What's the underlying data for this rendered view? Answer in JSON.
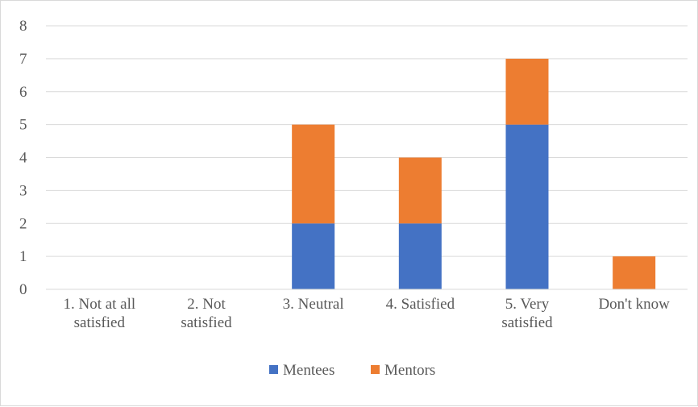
{
  "chart_data": {
    "type": "bar",
    "stacked": true,
    "title": "",
    "xlabel": "",
    "ylabel": "",
    "categories": [
      [
        "1. Not at all",
        "satisfied"
      ],
      [
        "2. Not",
        "satisfied"
      ],
      [
        "3. Neutral"
      ],
      [
        "4. Satisfied"
      ],
      [
        "5. Very",
        "satisfied"
      ],
      [
        "Don't know"
      ]
    ],
    "series": [
      {
        "name": "Mentees",
        "color": "#4472c4",
        "values": [
          0,
          0,
          2,
          2,
          5,
          0
        ]
      },
      {
        "name": "Mentors",
        "color": "#ed7d31",
        "values": [
          0,
          0,
          3,
          2,
          2,
          1
        ]
      }
    ],
    "ylim": [
      0,
      8
    ],
    "yticks": [
      "0",
      "1",
      "2",
      "3",
      "4",
      "5",
      "6",
      "7",
      "8"
    ],
    "grid": true,
    "legend_position": "bottom"
  }
}
